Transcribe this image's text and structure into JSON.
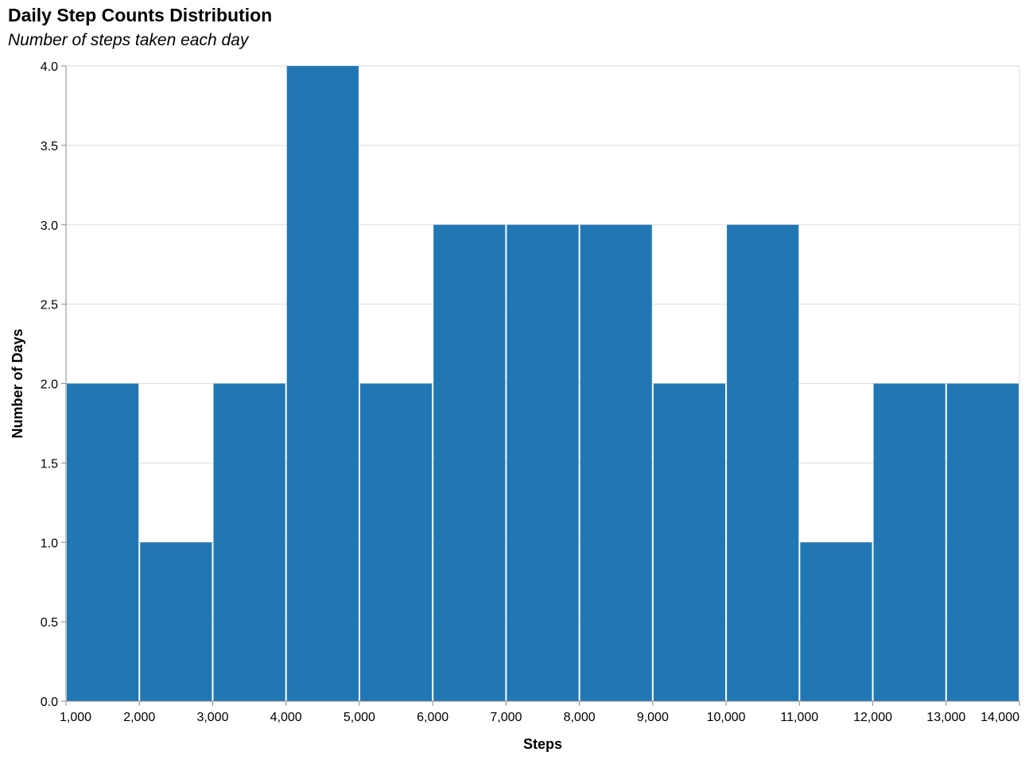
{
  "chart_data": {
    "type": "bar",
    "title": "Daily Step Counts Distribution",
    "subtitle": "Number of steps taken each day",
    "xlabel": "Steps",
    "ylabel": "Number of Days",
    "bin_start": [
      1000,
      2000,
      3000,
      4000,
      5000,
      6000,
      7000,
      8000,
      9000,
      10000,
      11000,
      12000,
      13000
    ],
    "bin_end": [
      2000,
      3000,
      4000,
      5000,
      6000,
      7000,
      8000,
      9000,
      10000,
      11000,
      12000,
      13000,
      14000
    ],
    "values": [
      2,
      1,
      2,
      4,
      2,
      3,
      3,
      3,
      2,
      3,
      1,
      2,
      2
    ],
    "xlim": [
      1000,
      14000
    ],
    "ylim": [
      0,
      4
    ],
    "x_ticks": [
      1000,
      2000,
      3000,
      4000,
      5000,
      6000,
      7000,
      8000,
      9000,
      10000,
      11000,
      12000,
      13000,
      14000
    ],
    "x_tick_labels": [
      "1,000",
      "2,000",
      "3,000",
      "4,000",
      "5,000",
      "6,000",
      "7,000",
      "8,000",
      "9,000",
      "10,000",
      "11,000",
      "12,000",
      "13,000",
      "14,000"
    ],
    "y_ticks": [
      0,
      0.5,
      1,
      1.5,
      2,
      2.5,
      3,
      3.5,
      4
    ],
    "y_tick_labels": [
      "0.0",
      "0.5",
      "1.0",
      "1.5",
      "2.0",
      "2.5",
      "3.0",
      "3.5",
      "4.0"
    ],
    "grid": true,
    "bar_color": "#2177b4",
    "grid_color": "#dddddd",
    "axis_color": "#888888"
  }
}
